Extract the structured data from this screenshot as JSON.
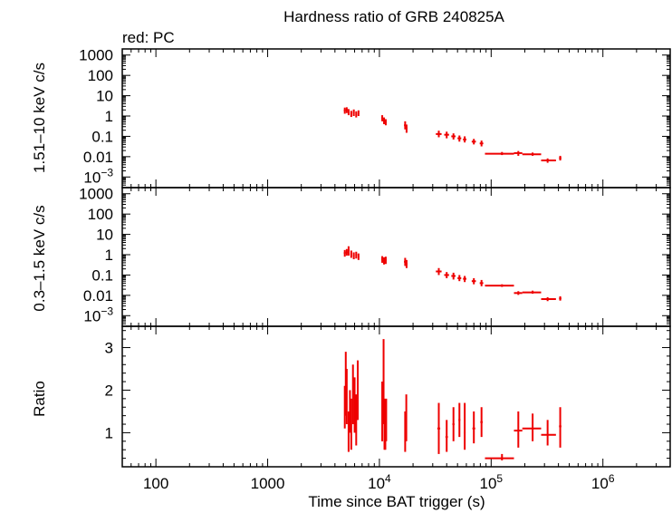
{
  "chart_data": {
    "type": "scatter",
    "title": "Hardness ratio of GRB 240825A",
    "subtitle": "red: PC",
    "xlabel": "Time since BAT trigger (s)",
    "x_scale": "log",
    "xlim": [
      50,
      4000000
    ],
    "x_ticks": [
      {
        "v": 100,
        "label": "100",
        "exp": ""
      },
      {
        "v": 1000,
        "label": "1000",
        "exp": ""
      },
      {
        "v": 10000,
        "label": "10",
        "exp": "4"
      },
      {
        "v": 100000,
        "label": "10",
        "exp": "5"
      },
      {
        "v": 1000000,
        "label": "10",
        "exp": "6"
      }
    ],
    "color": "#ee0000",
    "panels": [
      {
        "id": "hard",
        "ylabel": "1.51–10 keV c/s",
        "y_scale": "log",
        "ylim": [
          0.0003,
          2000
        ],
        "y_ticks": [
          {
            "v": 1000,
            "label": "1000",
            "exp": ""
          },
          {
            "v": 100,
            "label": "100",
            "exp": ""
          },
          {
            "v": 10,
            "label": "10",
            "exp": ""
          },
          {
            "v": 1,
            "label": "1",
            "exp": ""
          },
          {
            "v": 0.1,
            "label": "0.1",
            "exp": ""
          },
          {
            "v": 0.01,
            "label": "0.01",
            "exp": ""
          },
          {
            "v": 0.001,
            "label": "10",
            "exp": "−3"
          }
        ],
        "points": [
          [
            4900,
            1.9,
            4800,
            5000,
            1.3,
            2.6
          ],
          [
            5100,
            2.0,
            5000,
            5200,
            1.4,
            2.7
          ],
          [
            5300,
            1.6,
            5200,
            5400,
            1.1,
            2.2
          ],
          [
            5600,
            1.3,
            5500,
            5700,
            0.9,
            1.8
          ],
          [
            5900,
            1.5,
            5800,
            6000,
            1.0,
            2.1
          ],
          [
            6200,
            1.2,
            6100,
            6300,
            0.85,
            1.7
          ],
          [
            6500,
            1.4,
            6400,
            6600,
            1.0,
            1.9
          ],
          [
            10600,
            0.8,
            10400,
            10800,
            0.55,
            1.1
          ],
          [
            11000,
            0.6,
            10800,
            11200,
            0.4,
            0.85
          ],
          [
            11400,
            0.5,
            11200,
            11600,
            0.35,
            0.7
          ],
          [
            17000,
            0.35,
            16600,
            17400,
            0.22,
            0.55
          ],
          [
            17500,
            0.25,
            17200,
            17800,
            0.15,
            0.38
          ],
          [
            34000,
            0.13,
            32000,
            36000,
            0.09,
            0.19
          ],
          [
            40000,
            0.12,
            38000,
            42000,
            0.08,
            0.17
          ],
          [
            46000,
            0.1,
            44000,
            48000,
            0.07,
            0.14
          ],
          [
            52000,
            0.08,
            50000,
            54000,
            0.055,
            0.11
          ],
          [
            58000,
            0.07,
            56000,
            60000,
            0.05,
            0.1
          ],
          [
            70000,
            0.055,
            67000,
            73000,
            0.04,
            0.075
          ],
          [
            82000,
            0.045,
            79000,
            85000,
            0.032,
            0.062
          ],
          [
            125000,
            0.014,
            88000,
            160000,
            0.012,
            0.017
          ],
          [
            175000,
            0.015,
            160000,
            190000,
            0.011,
            0.019
          ],
          [
            235000,
            0.013,
            190000,
            280000,
            0.011,
            0.016
          ],
          [
            320000,
            0.0065,
            280000,
            380000,
            0.005,
            0.0082
          ],
          [
            415000,
            0.0085,
            405000,
            425000,
            0.0065,
            0.011
          ]
        ]
      },
      {
        "id": "soft",
        "ylabel": "0.3–1.5 keV c/s",
        "y_scale": "log",
        "ylim": [
          0.0003,
          2000
        ],
        "y_ticks": [
          {
            "v": 1000,
            "label": "1000",
            "exp": ""
          },
          {
            "v": 100,
            "label": "100",
            "exp": ""
          },
          {
            "v": 10,
            "label": "10",
            "exp": ""
          },
          {
            "v": 1,
            "label": "1",
            "exp": ""
          },
          {
            "v": 0.1,
            "label": "0.1",
            "exp": ""
          },
          {
            "v": 0.01,
            "label": "0.01",
            "exp": ""
          },
          {
            "v": 0.001,
            "label": "10",
            "exp": "−3"
          }
        ],
        "points": [
          [
            4900,
            1.2,
            4800,
            5000,
            0.8,
            1.7
          ],
          [
            5100,
            1.3,
            5000,
            5200,
            0.9,
            1.9
          ],
          [
            5300,
            1.6,
            5200,
            5400,
            0.9,
            2.6
          ],
          [
            5600,
            1.1,
            5500,
            5700,
            0.7,
            1.6
          ],
          [
            5900,
            0.9,
            5800,
            6000,
            0.6,
            1.3
          ],
          [
            6200,
            1.0,
            6100,
            6300,
            0.65,
            1.4
          ],
          [
            6500,
            0.8,
            6400,
            6600,
            0.55,
            1.15
          ],
          [
            10600,
            0.6,
            10400,
            10800,
            0.4,
            0.85
          ],
          [
            11000,
            0.5,
            10800,
            11200,
            0.33,
            0.75
          ],
          [
            11400,
            0.55,
            11200,
            11600,
            0.35,
            0.8
          ],
          [
            17000,
            0.45,
            16600,
            17400,
            0.28,
            0.7
          ],
          [
            17500,
            0.35,
            17200,
            17800,
            0.22,
            0.55
          ],
          [
            34000,
            0.15,
            32000,
            36000,
            0.1,
            0.22
          ],
          [
            40000,
            0.1,
            38000,
            42000,
            0.07,
            0.14
          ],
          [
            46000,
            0.09,
            44000,
            48000,
            0.06,
            0.13
          ],
          [
            52000,
            0.07,
            50000,
            54000,
            0.05,
            0.1
          ],
          [
            58000,
            0.065,
            56000,
            60000,
            0.045,
            0.09
          ],
          [
            70000,
            0.05,
            67000,
            73000,
            0.035,
            0.07
          ],
          [
            82000,
            0.04,
            79000,
            85000,
            0.028,
            0.057
          ],
          [
            125000,
            0.03,
            88000,
            160000,
            0.026,
            0.035
          ],
          [
            175000,
            0.013,
            160000,
            190000,
            0.0105,
            0.016
          ],
          [
            235000,
            0.014,
            190000,
            280000,
            0.012,
            0.017
          ],
          [
            320000,
            0.0065,
            280000,
            380000,
            0.0052,
            0.0081
          ],
          [
            415000,
            0.007,
            405000,
            425000,
            0.0055,
            0.009
          ]
        ]
      },
      {
        "id": "ratio",
        "ylabel": "Ratio",
        "y_scale": "linear",
        "ylim": [
          0.2,
          3.5
        ],
        "y_ticks": [
          {
            "v": 1,
            "label": "1",
            "exp": ""
          },
          {
            "v": 2,
            "label": "2",
            "exp": ""
          },
          {
            "v": 3,
            "label": "3",
            "exp": ""
          }
        ],
        "points": [
          [
            4900,
            1.6,
            4850,
            4950,
            1.1,
            2.1
          ],
          [
            5000,
            2.1,
            4950,
            5050,
            1.4,
            2.9
          ],
          [
            5100,
            1.8,
            5050,
            5150,
            1.2,
            2.5
          ],
          [
            5300,
            1.0,
            5250,
            5350,
            0.55,
            1.5
          ],
          [
            5450,
            1.5,
            5400,
            5500,
            1.0,
            2.0
          ],
          [
            5600,
            1.2,
            5550,
            5650,
            0.6,
            1.8
          ],
          [
            5800,
            1.9,
            5750,
            5850,
            1.2,
            2.6
          ],
          [
            6000,
            1.6,
            5950,
            6050,
            1.0,
            2.3
          ],
          [
            6200,
            1.3,
            6150,
            6250,
            0.7,
            1.9
          ],
          [
            6400,
            2.0,
            6350,
            6450,
            1.3,
            2.7
          ],
          [
            10600,
            1.5,
            10500,
            10700,
            0.8,
            2.2
          ],
          [
            10900,
            2.2,
            10800,
            11000,
            1.2,
            3.2
          ],
          [
            11100,
            1.2,
            11000,
            11200,
            0.6,
            1.8
          ],
          [
            11300,
            1.0,
            11200,
            11400,
            0.6,
            1.4
          ],
          [
            11500,
            1.3,
            11400,
            11600,
            0.8,
            1.8
          ],
          [
            17000,
            1.0,
            16800,
            17200,
            0.55,
            1.5
          ],
          [
            17400,
            1.3,
            17200,
            17600,
            0.8,
            1.9
          ],
          [
            34000,
            1.1,
            33000,
            35000,
            0.5,
            1.7
          ],
          [
            40000,
            0.9,
            39000,
            41000,
            0.55,
            1.3
          ],
          [
            46000,
            1.2,
            45000,
            47000,
            0.8,
            1.6
          ],
          [
            52000,
            1.3,
            51000,
            53000,
            0.9,
            1.7
          ],
          [
            58000,
            1.0,
            57000,
            59000,
            0.6,
            1.7
          ],
          [
            70000,
            1.1,
            68000,
            72000,
            0.75,
            1.5
          ],
          [
            82000,
            1.25,
            80000,
            84000,
            0.9,
            1.6
          ],
          [
            125000,
            0.4,
            88000,
            160000,
            0.35,
            0.5
          ],
          [
            175000,
            1.05,
            160000,
            190000,
            0.65,
            1.5
          ],
          [
            235000,
            1.1,
            190000,
            280000,
            0.8,
            1.45
          ],
          [
            320000,
            0.95,
            280000,
            380000,
            0.7,
            1.3
          ],
          [
            415000,
            1.15,
            405000,
            425000,
            0.65,
            1.6
          ]
        ]
      }
    ]
  }
}
